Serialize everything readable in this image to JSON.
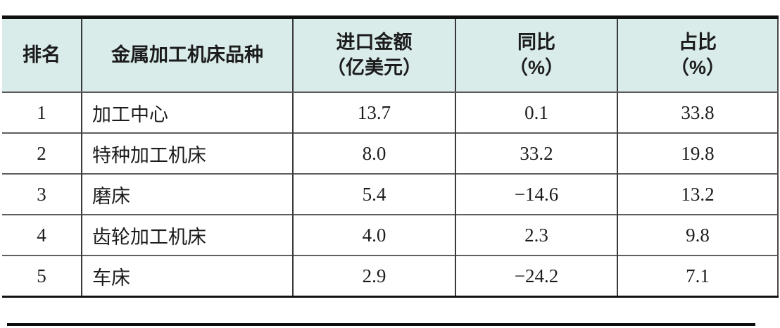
{
  "table": {
    "headers": [
      {
        "line1": "排名",
        "line2": ""
      },
      {
        "line1": "金属加工机床品种",
        "line2": ""
      },
      {
        "line1": "进口金额",
        "line2": "（亿美元）"
      },
      {
        "line1": "同比",
        "line2": "（%）"
      },
      {
        "line1": "占比",
        "line2": "（%）"
      }
    ],
    "rows": [
      {
        "rank": "1",
        "category": "加工中心",
        "import_amount": "13.7",
        "yoy": "0.1",
        "share": "33.8"
      },
      {
        "rank": "2",
        "category": "特种加工机床",
        "import_amount": "8.0",
        "yoy": "33.2",
        "share": "19.8"
      },
      {
        "rank": "3",
        "category": "磨床",
        "import_amount": "5.4",
        "yoy": "−14.6",
        "share": "13.2"
      },
      {
        "rank": "4",
        "category": "齿轮加工机床",
        "import_amount": "4.0",
        "yoy": "2.3",
        "share": "9.8"
      },
      {
        "rank": "5",
        "category": "车床",
        "import_amount": "2.9",
        "yoy": "−24.2",
        "share": "7.1"
      }
    ]
  },
  "colors": {
    "header_bg": "#d9ecea",
    "text": "#1c1c1c",
    "heavy_rule": "#111111",
    "row_divider": "#5f5f5f",
    "column_divider": "#3a3a3a"
  },
  "chart_data": {
    "type": "table",
    "columns": [
      "排名",
      "金属加工机床品种",
      "进口金额（亿美元）",
      "同比（%）",
      "占比（%）"
    ],
    "rows": [
      [
        1,
        "加工中心",
        13.7,
        0.1,
        33.8
      ],
      [
        2,
        "特种加工机床",
        8.0,
        33.2,
        19.8
      ],
      [
        3,
        "磨床",
        5.4,
        -14.6,
        13.2
      ],
      [
        4,
        "齿轮加工机床",
        4.0,
        2.3,
        9.8
      ],
      [
        5,
        "车床",
        2.9,
        -24.2,
        7.1
      ]
    ],
    "layout": {
      "header_background": "#d9ecea",
      "body_background": "#ffffff",
      "top_border": "thick-black",
      "bottom_border": "thick-black",
      "left_border": false,
      "right_border": true
    }
  }
}
